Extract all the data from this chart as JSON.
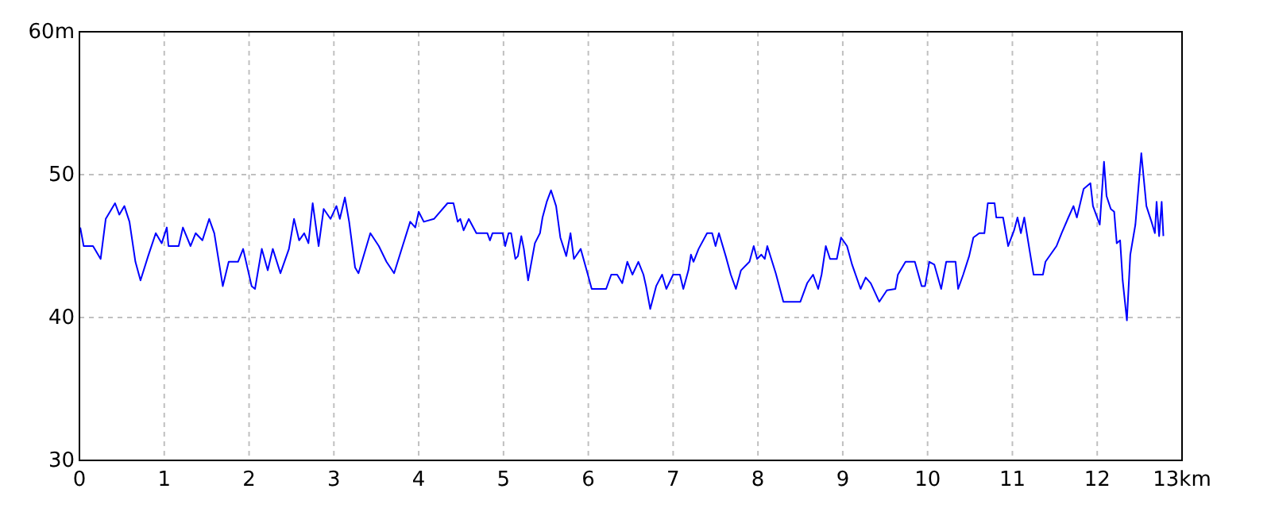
{
  "chart_data": {
    "type": "line",
    "xlim": [
      0,
      13
    ],
    "ylim": [
      30,
      60
    ],
    "xticks": [
      0,
      1,
      2,
      3,
      4,
      5,
      6,
      7,
      8,
      9,
      10,
      11,
      12,
      {
        "value": 13,
        "label": "13km"
      }
    ],
    "yticks": [
      30,
      40,
      50,
      {
        "value": 60,
        "label": "60m"
      }
    ],
    "grid": true,
    "marker": "none",
    "line_style": "solid",
    "series": [
      {
        "color": "#0000ff",
        "x": [
          0.01,
          0.05,
          0.16,
          0.25,
          0.31,
          0.42,
          0.47,
          0.53,
          0.59,
          0.66,
          0.72,
          0.81,
          0.9,
          0.97,
          1.03,
          1.05,
          1.17,
          1.22,
          1.31,
          1.37,
          1.45,
          1.53,
          1.59,
          1.69,
          1.76,
          1.87,
          1.93,
          2.03,
          2.07,
          2.15,
          2.22,
          2.28,
          2.37,
          2.47,
          2.53,
          2.59,
          2.65,
          2.7,
          2.75,
          2.82,
          2.88,
          2.96,
          3.03,
          3.07,
          3.13,
          3.18,
          3.25,
          3.29,
          3.43,
          3.53,
          3.62,
          3.71,
          3.81,
          3.9,
          3.96,
          4.0,
          4.06,
          4.18,
          4.34,
          4.41,
          4.46,
          4.49,
          4.53,
          4.59,
          4.68,
          4.81,
          4.84,
          4.87,
          4.99,
          5.02,
          5.06,
          5.09,
          5.14,
          5.17,
          5.21,
          5.24,
          5.29,
          5.37,
          5.43,
          5.46,
          5.51,
          5.56,
          5.62,
          5.67,
          5.74,
          5.79,
          5.83,
          5.91,
          5.99,
          6.04,
          6.15,
          6.21,
          6.27,
          6.34,
          6.4,
          6.46,
          6.52,
          6.59,
          6.65,
          6.68,
          6.73,
          6.8,
          6.87,
          6.92,
          7.0,
          7.08,
          7.12,
          7.18,
          7.21,
          7.24,
          7.3,
          7.4,
          7.46,
          7.5,
          7.54,
          7.62,
          7.68,
          7.74,
          7.8,
          7.9,
          7.95,
          7.99,
          8.04,
          8.08,
          8.11,
          8.21,
          8.3,
          8.5,
          8.58,
          8.65,
          8.71,
          8.75,
          8.8,
          8.85,
          8.93,
          8.98,
          9.05,
          9.11,
          9.21,
          9.27,
          9.33,
          9.43,
          9.52,
          9.62,
          9.65,
          9.74,
          9.85,
          9.93,
          9.97,
          10.02,
          10.08,
          10.16,
          10.22,
          10.33,
          10.36,
          10.42,
          10.49,
          10.54,
          10.61,
          10.67,
          10.71,
          10.79,
          10.81,
          10.89,
          10.95,
          11.02,
          11.06,
          11.1,
          11.14,
          11.2,
          11.25,
          11.36,
          11.39,
          11.52,
          11.58,
          11.66,
          11.72,
          11.76,
          11.84,
          11.92,
          11.95,
          12.03,
          12.08,
          12.11,
          12.16,
          12.2,
          12.23,
          12.27,
          12.3,
          12.35,
          12.39,
          12.45,
          12.52,
          12.58,
          12.64,
          12.68,
          12.7,
          12.73,
          12.76,
          12.78
        ],
        "values": [
          46.3,
          45,
          45,
          44.1,
          46.9,
          48,
          47.2,
          47.8,
          46.7,
          43.9,
          42.6,
          44.3,
          45.9,
          45.2,
          46.3,
          45,
          45,
          46.3,
          45,
          45.9,
          45.4,
          46.9,
          45.9,
          42.2,
          43.9,
          43.9,
          44.8,
          42.2,
          42,
          44.8,
          43.3,
          44.8,
          43.1,
          44.8,
          46.9,
          45.4,
          45.9,
          45.2,
          48,
          45,
          47.6,
          46.9,
          47.8,
          46.9,
          48.4,
          46.7,
          43.5,
          43.1,
          45.9,
          45,
          43.9,
          43.1,
          45,
          46.7,
          46.3,
          47.4,
          46.7,
          46.9,
          48,
          48,
          46.7,
          46.9,
          46.1,
          46.9,
          45.9,
          45.9,
          45.4,
          45.9,
          45.9,
          45,
          45.9,
          45.9,
          44.1,
          44.3,
          45.7,
          44.8,
          42.6,
          45.2,
          45.9,
          47,
          48.1,
          48.9,
          47.8,
          45.6,
          44.3,
          45.9,
          44.1,
          44.8,
          43.1,
          42,
          42,
          42,
          43,
          43,
          42.4,
          43.9,
          43,
          43.9,
          43,
          42.2,
          40.6,
          42.2,
          43,
          42,
          43,
          43,
          42,
          43.3,
          44.4,
          43.9,
          44.8,
          45.9,
          45.9,
          45,
          45.9,
          44.3,
          43,
          42,
          43.3,
          43.9,
          45,
          44.1,
          44.4,
          44.1,
          45,
          43.1,
          41.1,
          41.1,
          42.4,
          43,
          42,
          43,
          45,
          44.1,
          44.1,
          45.6,
          45,
          43.7,
          42,
          42.8,
          42.4,
          41.1,
          41.9,
          42,
          43,
          43.9,
          43.9,
          42.2,
          42.2,
          43.9,
          43.7,
          42,
          43.9,
          43.9,
          42,
          43,
          44.3,
          45.6,
          45.9,
          45.9,
          48,
          48,
          47,
          47,
          45,
          46.1,
          47,
          45.9,
          47,
          44.8,
          43,
          43,
          43.9,
          45,
          45.9,
          47,
          47.8,
          47,
          49,
          49.4,
          47.8,
          46.5,
          50.9,
          48.5,
          47.6,
          47.4,
          45.2,
          45.4,
          42.6,
          39.8,
          44.4,
          46.5,
          51.5,
          47.8,
          46.7,
          45.9,
          48.1,
          45.7,
          48.1,
          45.7
        ]
      }
    ]
  }
}
